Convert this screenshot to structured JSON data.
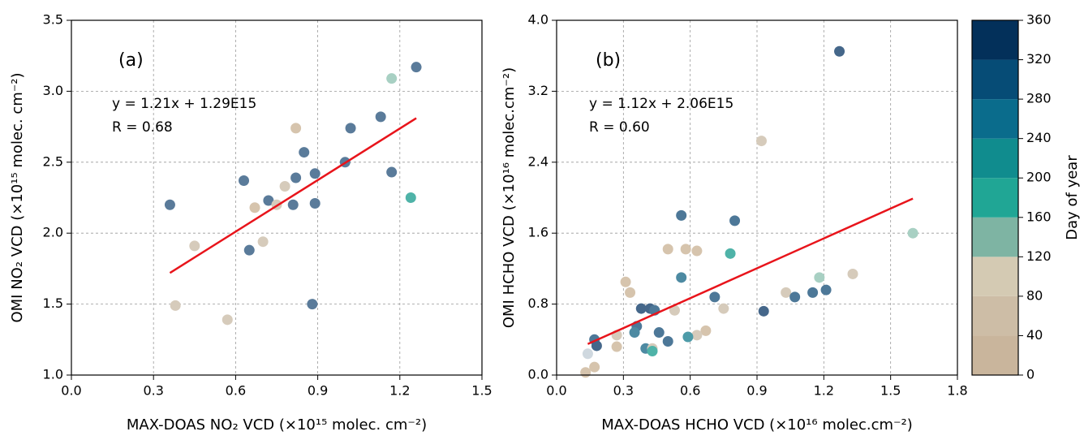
{
  "chart_data": [
    {
      "type": "scatter",
      "annotations": [
        "(a)",
        "y = 1.21x + 1.29E15",
        "R = 0.68"
      ],
      "x_label": "MAX-DOAS NO₂ VCD (×10¹⁵ molec. cm⁻²)",
      "y_label": "OMI NO₂ VCD (×10¹⁵ molec. cm⁻²)",
      "xlim": [
        0,
        1.5
      ],
      "ylim": [
        1,
        3.5
      ],
      "xticks": [
        {
          "value": 0,
          "label": "0.0"
        },
        0.3,
        0.6,
        0.9,
        1.2,
        1.5
      ],
      "yticks": [
        {
          "value": 1,
          "label": "1.0"
        },
        1.5,
        {
          "value": 2,
          "label": "2.0"
        },
        2.5,
        {
          "value": 3,
          "label": "3.0"
        },
        3.5
      ],
      "grid": true,
      "series": [
        {
          "x": [
            0.36,
            0.38,
            0.45,
            0.57,
            0.63,
            0.65,
            0.67,
            0.7,
            0.72,
            0.75,
            0.78,
            0.81,
            0.82,
            0.82,
            0.85,
            0.89,
            0.89,
            0.88,
            1.0,
            1.02,
            1.13,
            1.17,
            1.17,
            1.24,
            1.26
          ],
          "values": [
            2.2,
            1.49,
            1.91,
            1.39,
            2.37,
            1.88,
            2.18,
            1.94,
            2.23,
            2.2,
            2.33,
            2.2,
            2.39,
            2.74,
            2.57,
            2.42,
            2.21,
            1.5,
            2.5,
            2.74,
            2.82,
            2.43,
            3.09,
            2.25,
            3.17
          ],
          "colors": [
            "#5a7b9a",
            "#d6cbbb",
            "#d6cbbb",
            "#d6cbbb",
            "#5a7b9a",
            "#5a7b9a",
            "#d6c4ad",
            "#d6cbbb",
            "#5a7b9a",
            "#d6cbbb",
            "#d6cbbb",
            "#5a7b9a",
            "#5a7b9a",
            "#d6c4ad",
            "#5a7b9a",
            "#5a7b9a",
            "#5a7b9a",
            "#5a7b9a",
            "#5a7b9a",
            "#5a7b9a",
            "#5a7b9a",
            "#5a7b9a",
            "#a8d0c3",
            "#4fb3a8",
            "#5a7b9a"
          ]
        }
      ],
      "fit": {
        "x": [
          0.36,
          1.26
        ],
        "y": [
          1.72,
          2.81
        ],
        "color": "#e8141b"
      }
    },
    {
      "type": "scatter",
      "annotations": [
        "(b)",
        "y = 1.12x + 2.06E15",
        "R = 0.60"
      ],
      "x_label": "MAX-DOAS HCHO VCD (×10¹⁶ molec.cm⁻²)",
      "y_label": "OMI HCHO VCD (×10¹⁶ molec.cm⁻²)",
      "xlim": [
        0,
        1.8
      ],
      "ylim": [
        0,
        4
      ],
      "xticks": [
        {
          "value": 0,
          "label": "0.0"
        },
        0.3,
        0.6,
        0.9,
        1.2,
        1.5,
        1.8
      ],
      "yticks": [
        {
          "value": 0,
          "label": "0.0"
        },
        0.8,
        1.6,
        2.4,
        3.2,
        {
          "value": 4,
          "label": "4.0"
        }
      ],
      "grid": true,
      "series": [
        {
          "x": [
            1.27,
            0.92,
            0.56,
            0.8,
            1.6,
            0.5,
            0.58,
            0.63,
            0.78,
            1.33,
            1.18,
            0.56,
            0.31,
            1.21,
            1.15,
            1.03,
            0.33,
            1.07,
            0.71,
            0.38,
            0.42,
            0.44,
            0.75,
            0.53,
            0.93,
            0.36,
            0.35,
            0.46,
            0.67,
            0.63,
            0.59,
            0.5,
            0.27,
            0.17,
            0.18,
            0.27,
            0.4,
            0.43,
            0.43,
            0.14,
            0.17,
            0.13
          ],
          "values": [
            3.65,
            2.64,
            1.8,
            1.74,
            1.6,
            1.42,
            1.42,
            1.4,
            1.37,
            1.14,
            1.1,
            1.1,
            1.05,
            0.96,
            0.93,
            0.93,
            0.93,
            0.88,
            0.88,
            0.75,
            0.75,
            0.73,
            0.75,
            0.73,
            0.72,
            0.55,
            0.48,
            0.48,
            0.5,
            0.45,
            0.43,
            0.38,
            0.45,
            0.4,
            0.33,
            0.32,
            0.3,
            0.3,
            0.27,
            0.24,
            0.09,
            0.03
          ],
          "colors": [
            "#45678a",
            "#d6cbbb",
            "#4d7898",
            "#4d7898",
            "#a8d0c3",
            "#d6c4ad",
            "#d6c4ad",
            "#d6c4ad",
            "#4fb3a8",
            "#d6cbbb",
            "#a8d0c3",
            "#4d8aa2",
            "#d6c4ad",
            "#4d7898",
            "#4d7898",
            "#d6cbbb",
            "#d6c4ad",
            "#4d7898",
            "#4d7898",
            "#45678a",
            "#45678a",
            "#4d7898",
            "#d6cbbb",
            "#d6cbbb",
            "#45678a",
            "#4d7898",
            "#4d8aa2",
            "#4d7898",
            "#d6c4ad",
            "#d6cbbb",
            "#4d9ba8",
            "#4d7898",
            "#d6cbbb",
            "#4d7898",
            "#45678a",
            "#d6c4ad",
            "#4d8aa2",
            "#d6cbbb",
            "#4fb3a8",
            "#cfd8df",
            "#d6c4ad",
            "#d6c4ad"
          ]
        }
      ],
      "fit": {
        "x": [
          0.14,
          1.6
        ],
        "y": [
          0.35,
          1.99
        ],
        "color": "#e8141b"
      }
    }
  ],
  "colorbar": {
    "label": "Day of year",
    "lim": [
      0,
      360
    ],
    "ticks": [
      0,
      40,
      80,
      120,
      160,
      200,
      240,
      280,
      320,
      360
    ],
    "colors": [
      "#c9b59c",
      "#cdbda6",
      "#d4cab3",
      "#7eb4a3",
      "#20a695",
      "#108c8e",
      "#0a6c8c",
      "#064c76",
      "#03305a"
    ]
  }
}
